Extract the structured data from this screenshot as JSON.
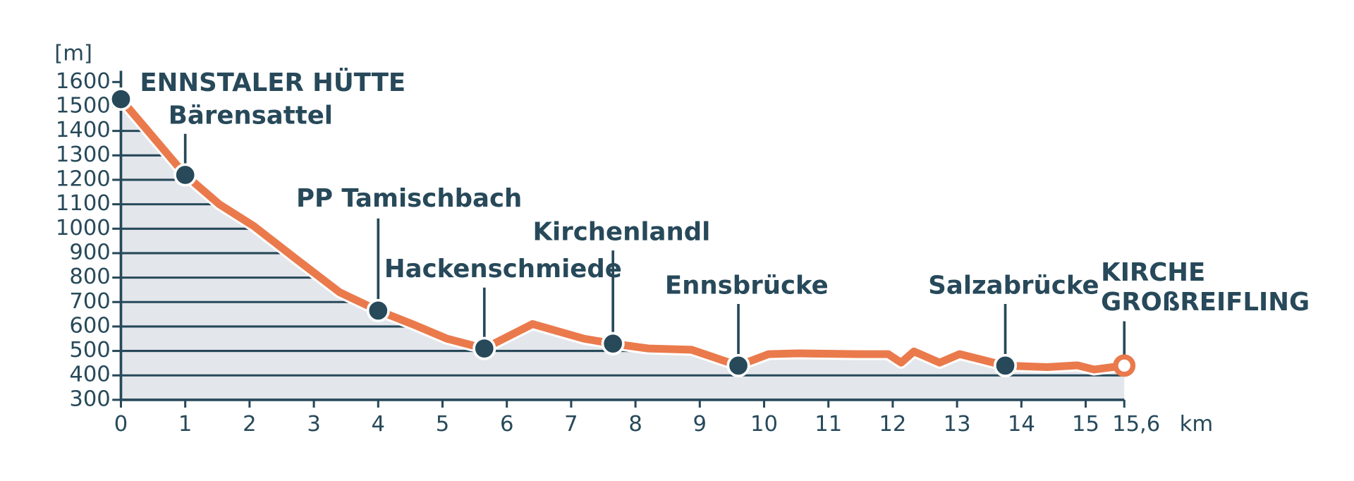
{
  "chart_data": {
    "type": "area",
    "y_label": "[m]",
    "x_label": "km",
    "x": [
      0,
      1,
      1.53,
      2.07,
      2.73,
      3.4,
      4,
      4.53,
      5.07,
      5.65,
      6.4,
      7.2,
      7.65,
      8.2,
      8.87,
      9.6,
      10.07,
      10.53,
      11.47,
      11.93,
      12.13,
      12.33,
      12.73,
      13.04,
      13.75,
      14.4,
      14.87,
      15.13,
      15.6
    ],
    "values": [
      1530,
      1220,
      1100,
      1010,
      875,
      740,
      665,
      610,
      550,
      510,
      610,
      550,
      530,
      510,
      505,
      440,
      487,
      490,
      487,
      487,
      452,
      498,
      452,
      487,
      440,
      434,
      441,
      424,
      440
    ],
    "color": "#ea7a4c",
    "fill": "#e3e6eb",
    "xlim": [
      0,
      15.6
    ],
    "ylim": [
      300,
      1600
    ],
    "xticks": [
      0,
      1,
      2,
      3,
      4,
      5,
      6,
      7,
      8,
      9,
      10,
      11,
      12,
      13,
      14,
      15,
      {
        "value": 15.6,
        "label": "15,6"
      }
    ],
    "yticks": [
      300,
      400,
      500,
      600,
      700,
      800,
      900,
      1000,
      1100,
      1200,
      1300,
      1400,
      1500,
      1600
    ],
    "grid": true,
    "waypoints": [
      {
        "label_lines": [
          "ENNSTALER HÜTTE"
        ],
        "x": 0,
        "y": 1530
      },
      {
        "label_lines": [
          "Bärensattel"
        ],
        "x": 1,
        "y": 1220
      },
      {
        "label_lines": [
          "PP Tamischbach"
        ],
        "x": 4,
        "y": 665
      },
      {
        "label_lines": [
          "Hackenschmiede"
        ],
        "x": 5.65,
        "y": 510
      },
      {
        "label_lines": [
          "Kirchenlandl"
        ],
        "x": 7.65,
        "y": 530
      },
      {
        "label_lines": [
          "Ennsbrücke"
        ],
        "x": 9.6,
        "y": 440
      },
      {
        "label_lines": [
          "Salzabrücke"
        ],
        "x": 13.75,
        "y": 440
      },
      {
        "label_lines": [
          "KIRCHE",
          "GROßREIFLING"
        ],
        "x": 15.6,
        "y": 440
      }
    ]
  }
}
